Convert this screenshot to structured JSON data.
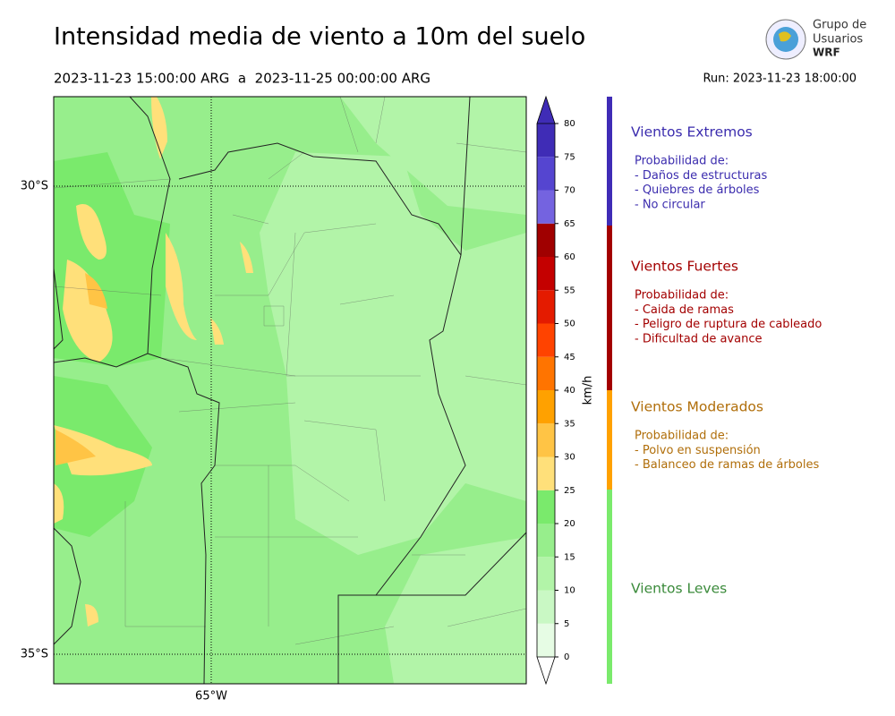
{
  "header": {
    "title": "Intensidad media de viento a 10m del suelo",
    "period": "2023-11-23 15:00:00 ARG  a  2023-11-25 00:00:00 ARG",
    "run": "Run: 2023-11-23 18:00:00"
  },
  "logo": {
    "line1": "Grupo de",
    "line2": "Usuarios",
    "line3": "WRF"
  },
  "map": {
    "lat_labels": [
      "30°S",
      "35°S"
    ],
    "lon_labels": [
      "65°W"
    ]
  },
  "colorbar": {
    "label": "km/h",
    "ticks": [
      0,
      5,
      10,
      15,
      20,
      25,
      30,
      35,
      40,
      45,
      50,
      55,
      60,
      65,
      70,
      75,
      80
    ],
    "colors": [
      "#e6fce4",
      "#c9f8c4",
      "#b2f4a8",
      "#97ee8c",
      "#7aea6c",
      "#ffe07a",
      "#ffc445",
      "#ffa100",
      "#ff7400",
      "#ff4300",
      "#e41b00",
      "#c40000",
      "#a00000",
      "#7463e0",
      "#5545d0",
      "#3f2cb6"
    ],
    "under_color": "#ffffff",
    "over_color": "#3f2cb6"
  },
  "legend": [
    {
      "name": "Vientos Extremos",
      "color": "#3b2cae",
      "details": [
        "Probabilidad de:",
        "- Daños de estructuras",
        "- Quiebres de árboles",
        "- No circular"
      ]
    },
    {
      "name": "Vientos Fuertes",
      "color": "#a30000",
      "details": [
        "Probabilidad de:",
        "- Caida de ramas",
        "- Peligro de ruptura de cableado",
        "- Dificultad de avance"
      ]
    },
    {
      "name": "Vientos Moderados",
      "color": "#b06e0a",
      "details": [
        "Probabilidad de:",
        "- Polvo en suspensión",
        "- Balanceo de ramas de árboles"
      ]
    },
    {
      "name": "Vientos Leves",
      "color": "#3a8a3a",
      "details": []
    }
  ]
}
